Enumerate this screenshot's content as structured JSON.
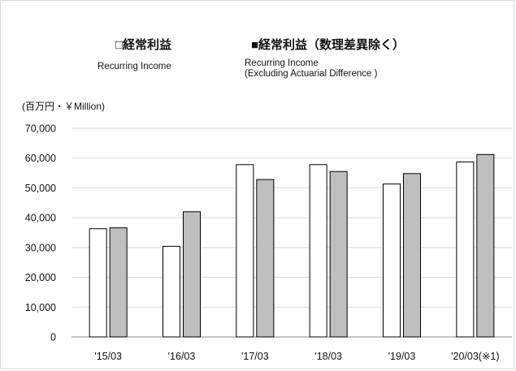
{
  "chart_data": {
    "type": "bar",
    "unit_label": "(百万円・￥Million)",
    "categories": [
      "'15/03",
      "'16/03",
      "'17/03",
      "'18/03",
      "'19/03",
      "'20/03(※1)"
    ],
    "series": [
      {
        "name": "□経常利益",
        "name_en": "Recurring Income",
        "color": "#ffffff",
        "values": [
          36300,
          30400,
          57800,
          57800,
          51300,
          58700
        ]
      },
      {
        "name": "■経常利益（数理差異除く）",
        "name_en_lines": [
          "Recurring Income",
          "(Excluding Actuarial Difference )"
        ],
        "color": "#bfbfbf",
        "values": [
          36600,
          42000,
          52800,
          55500,
          54800,
          61200
        ]
      }
    ],
    "ylim": [
      0,
      70000
    ],
    "yticks": [
      "0",
      "10,000",
      "20,000",
      "30,000",
      "40,000",
      "50,000",
      "60,000",
      "70,000"
    ],
    "grid": true,
    "legend_position": "top"
  }
}
